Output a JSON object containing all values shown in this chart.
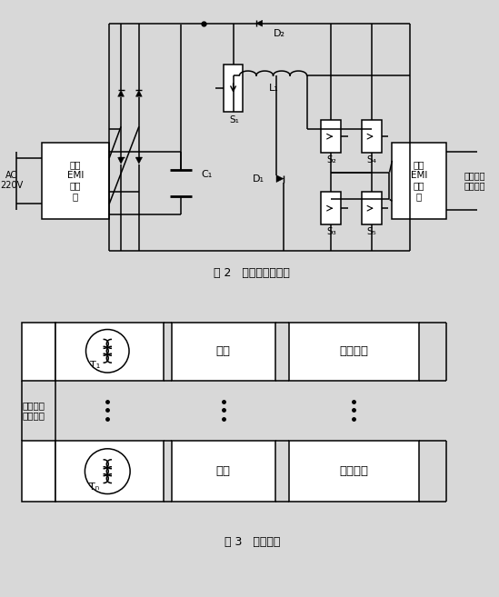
{
  "bg_color": "#d8d8d8",
  "line_color": "#000000",
  "fig2_caption": "图 2   初级主电路结构",
  "fig3_caption": "图 3   次级框图",
  "input_emi_label": "输入\nEMI\n滤波\n器",
  "output_emi_label": "输出\nEMI\n滤波\n器",
  "hf_bus_right_label": "高频交流\n电流母线",
  "hf_bus_left_label": "高频交流\n电流母线",
  "ac_label": "AC\n220V",
  "rectifier_label": "整流",
  "linear_reg_label": "线性稳压",
  "D2_label": "D₂",
  "D1_label": "D₁",
  "L1_label": "L₁",
  "S1_label": "S₁",
  "S2_label": "S₂",
  "S3_label": "S₃",
  "S4_label": "S₄",
  "S5_label": "S₅",
  "C1_label": "C₁",
  "T1_label": "T₁",
  "Tn_label": "Tₙ"
}
